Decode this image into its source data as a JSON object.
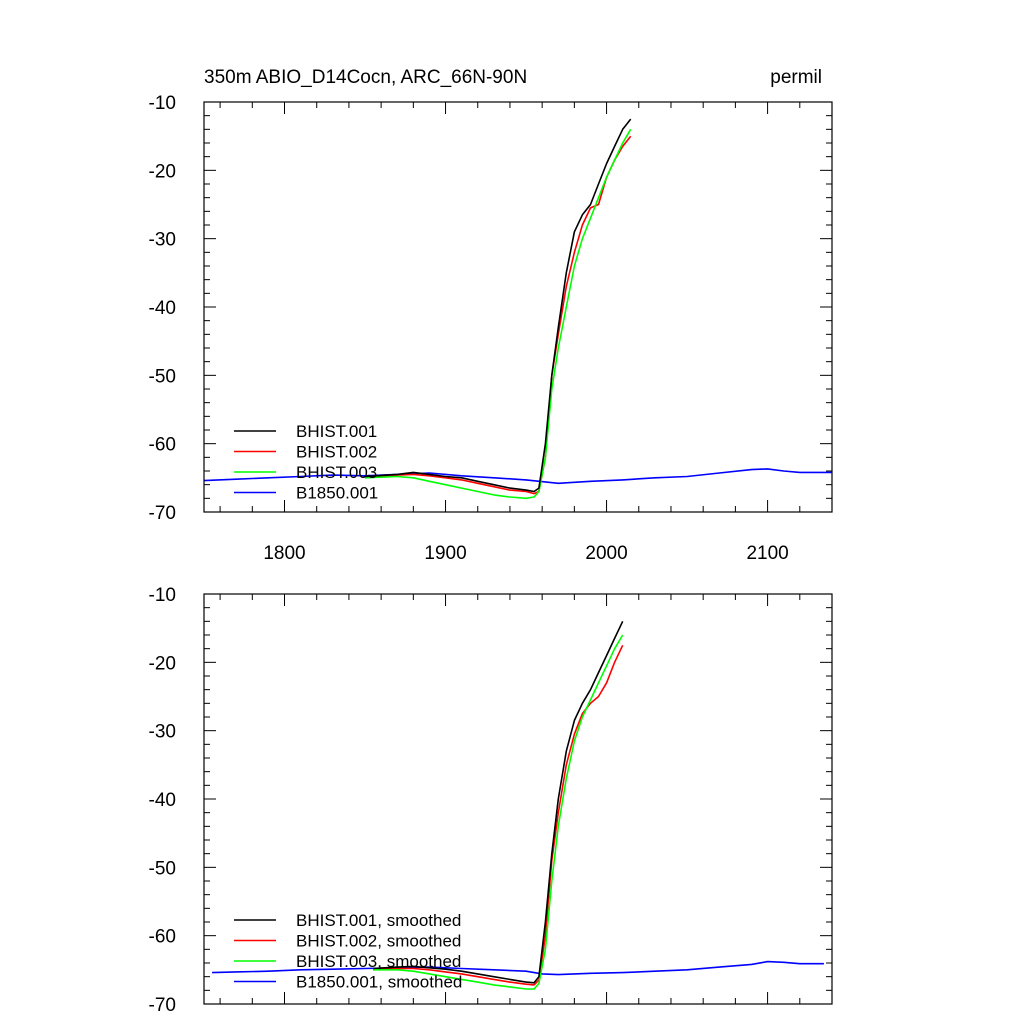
{
  "colors": {
    "BHIST.001": "#000000",
    "BHIST.002": "#ff0000",
    "BHIST.003": "#00ff00",
    "B1850.001": "#0000ff"
  },
  "chart_data": [
    {
      "type": "line",
      "title": "350m ABIO_D14Cocn, ARC_66N-90N",
      "units": "permil",
      "xlabel": "",
      "ylabel": "",
      "xlim": [
        1750,
        2140
      ],
      "ylim": [
        -70,
        -10
      ],
      "xticks": [
        1800,
        1900,
        2000,
        2100
      ],
      "xtick_labels": [
        "1800",
        "1900",
        "2000",
        "2100"
      ],
      "yticks": [
        -10,
        -20,
        -30,
        -40,
        -50,
        -60,
        -70
      ],
      "ytick_labels": [
        "-10",
        "-20",
        "-30",
        "-40",
        "-50",
        "-60",
        "-70"
      ],
      "grid": false,
      "legend_position": "bottom-left",
      "series": [
        {
          "name": "BHIST.001",
          "color": "#000000",
          "x": [
            1850,
            1870,
            1880,
            1890,
            1900,
            1910,
            1920,
            1930,
            1940,
            1950,
            1955,
            1958,
            1962,
            1966,
            1970,
            1975,
            1980,
            1985,
            1990,
            1995,
            2000,
            2005,
            2010,
            2015
          ],
          "y": [
            -64.8,
            -64.5,
            -64.2,
            -64.5,
            -64.8,
            -65.0,
            -65.5,
            -66.0,
            -66.5,
            -66.8,
            -67.0,
            -66.5,
            -60.0,
            -50.0,
            -43.0,
            -35.0,
            -29.0,
            -26.5,
            -25.0,
            -22.0,
            -19.0,
            -16.5,
            -14.0,
            -12.5
          ]
        },
        {
          "name": "BHIST.002",
          "color": "#ff0000",
          "x": [
            1850,
            1870,
            1880,
            1890,
            1900,
            1910,
            1920,
            1930,
            1940,
            1950,
            1955,
            1958,
            1962,
            1966,
            1970,
            1975,
            1980,
            1985,
            1990,
            1995,
            2000,
            2005,
            2010,
            2015
          ],
          "y": [
            -65.0,
            -64.6,
            -64.5,
            -64.7,
            -65.0,
            -65.3,
            -65.8,
            -66.3,
            -66.8,
            -67.0,
            -67.3,
            -67.0,
            -62.0,
            -50.0,
            -44.0,
            -37.0,
            -32.0,
            -28.0,
            -25.5,
            -25.0,
            -21.0,
            -18.5,
            -16.5,
            -15.0
          ]
        },
        {
          "name": "BHIST.003",
          "color": "#00ff00",
          "x": [
            1850,
            1870,
            1880,
            1890,
            1900,
            1910,
            1920,
            1930,
            1940,
            1950,
            1955,
            1958,
            1962,
            1966,
            1970,
            1975,
            1980,
            1985,
            1990,
            1995,
            2000,
            2005,
            2010,
            2015
          ],
          "y": [
            -65.0,
            -64.8,
            -65.0,
            -65.5,
            -66.0,
            -66.5,
            -67.0,
            -67.5,
            -67.8,
            -68.0,
            -67.8,
            -67.0,
            -62.0,
            -52.0,
            -46.0,
            -40.0,
            -34.0,
            -30.0,
            -27.0,
            -24.0,
            -21.0,
            -18.5,
            -16.0,
            -14.0
          ]
        },
        {
          "name": "B1850.001",
          "color": "#0000ff",
          "x": [
            1750,
            1770,
            1790,
            1810,
            1830,
            1850,
            1870,
            1890,
            1910,
            1930,
            1950,
            1970,
            1990,
            2010,
            2030,
            2050,
            2070,
            2090,
            2100,
            2110,
            2120,
            2140
          ],
          "y": [
            -65.4,
            -65.2,
            -65.0,
            -64.8,
            -64.6,
            -64.7,
            -64.5,
            -64.3,
            -64.7,
            -65.0,
            -65.3,
            -65.8,
            -65.5,
            -65.3,
            -65.0,
            -64.8,
            -64.3,
            -63.8,
            -63.7,
            -64.0,
            -64.2,
            -64.2
          ]
        }
      ]
    },
    {
      "type": "line",
      "title": "",
      "xlabel": "",
      "ylabel": "",
      "xlim": [
        1750,
        2140
      ],
      "ylim": [
        -70,
        -10
      ],
      "xticks": [
        1800,
        1900,
        2000,
        2100
      ],
      "yticks": [
        -10,
        -20,
        -30,
        -40,
        -50,
        -60,
        -70
      ],
      "ytick_labels": [
        "-10",
        "-20",
        "-30",
        "-40",
        "-50",
        "-60",
        "-70"
      ],
      "grid": false,
      "legend_position": "bottom-left",
      "series": [
        {
          "name": "BHIST.001, smoothed",
          "color": "#000000",
          "x": [
            1855,
            1870,
            1880,
            1890,
            1900,
            1910,
            1920,
            1930,
            1940,
            1950,
            1955,
            1958,
            1962,
            1966,
            1970,
            1975,
            1980,
            1985,
            1990,
            1995,
            2000,
            2005,
            2010
          ],
          "y": [
            -64.8,
            -64.6,
            -64.5,
            -64.7,
            -64.9,
            -65.2,
            -65.6,
            -66.0,
            -66.4,
            -66.8,
            -66.9,
            -66.0,
            -58.0,
            -48.0,
            -40.0,
            -33.0,
            -28.5,
            -26.0,
            -24.0,
            -21.5,
            -19.0,
            -16.5,
            -14.0
          ]
        },
        {
          "name": "BHIST.002, smoothed",
          "color": "#ff0000",
          "x": [
            1855,
            1870,
            1880,
            1890,
            1900,
            1910,
            1920,
            1930,
            1940,
            1950,
            1955,
            1958,
            1962,
            1966,
            1970,
            1975,
            1980,
            1985,
            1990,
            1995,
            2000,
            2005,
            2010
          ],
          "y": [
            -65.0,
            -64.8,
            -64.8,
            -65.0,
            -65.3,
            -65.6,
            -66.0,
            -66.4,
            -66.8,
            -67.1,
            -67.2,
            -66.5,
            -60.0,
            -49.0,
            -42.0,
            -35.0,
            -30.5,
            -27.5,
            -26.0,
            -25.0,
            -23.0,
            -20.0,
            -17.5
          ]
        },
        {
          "name": "BHIST.003, smoothed",
          "color": "#00ff00",
          "x": [
            1855,
            1870,
            1880,
            1890,
            1900,
            1910,
            1920,
            1930,
            1940,
            1950,
            1955,
            1958,
            1962,
            1966,
            1970,
            1975,
            1980,
            1985,
            1990,
            1995,
            2000,
            2005,
            2010
          ],
          "y": [
            -65.0,
            -65.0,
            -65.2,
            -65.6,
            -66.0,
            -66.4,
            -66.8,
            -67.2,
            -67.5,
            -67.8,
            -67.8,
            -67.0,
            -62.0,
            -52.0,
            -44.0,
            -37.0,
            -31.5,
            -28.0,
            -25.5,
            -23.0,
            -20.5,
            -18.0,
            -16.0
          ]
        },
        {
          "name": "B1850.001, smoothed",
          "color": "#0000ff",
          "x": [
            1755,
            1770,
            1790,
            1810,
            1830,
            1850,
            1870,
            1890,
            1910,
            1930,
            1950,
            1960,
            1970,
            1990,
            2010,
            2030,
            2050,
            2070,
            2090,
            2100,
            2110,
            2120,
            2135
          ],
          "y": [
            -65.4,
            -65.3,
            -65.2,
            -65.0,
            -64.9,
            -64.8,
            -64.7,
            -64.6,
            -64.8,
            -65.0,
            -65.2,
            -65.6,
            -65.7,
            -65.5,
            -65.4,
            -65.2,
            -65.0,
            -64.6,
            -64.2,
            -63.8,
            -63.9,
            -64.1,
            -64.1
          ]
        }
      ]
    }
  ]
}
